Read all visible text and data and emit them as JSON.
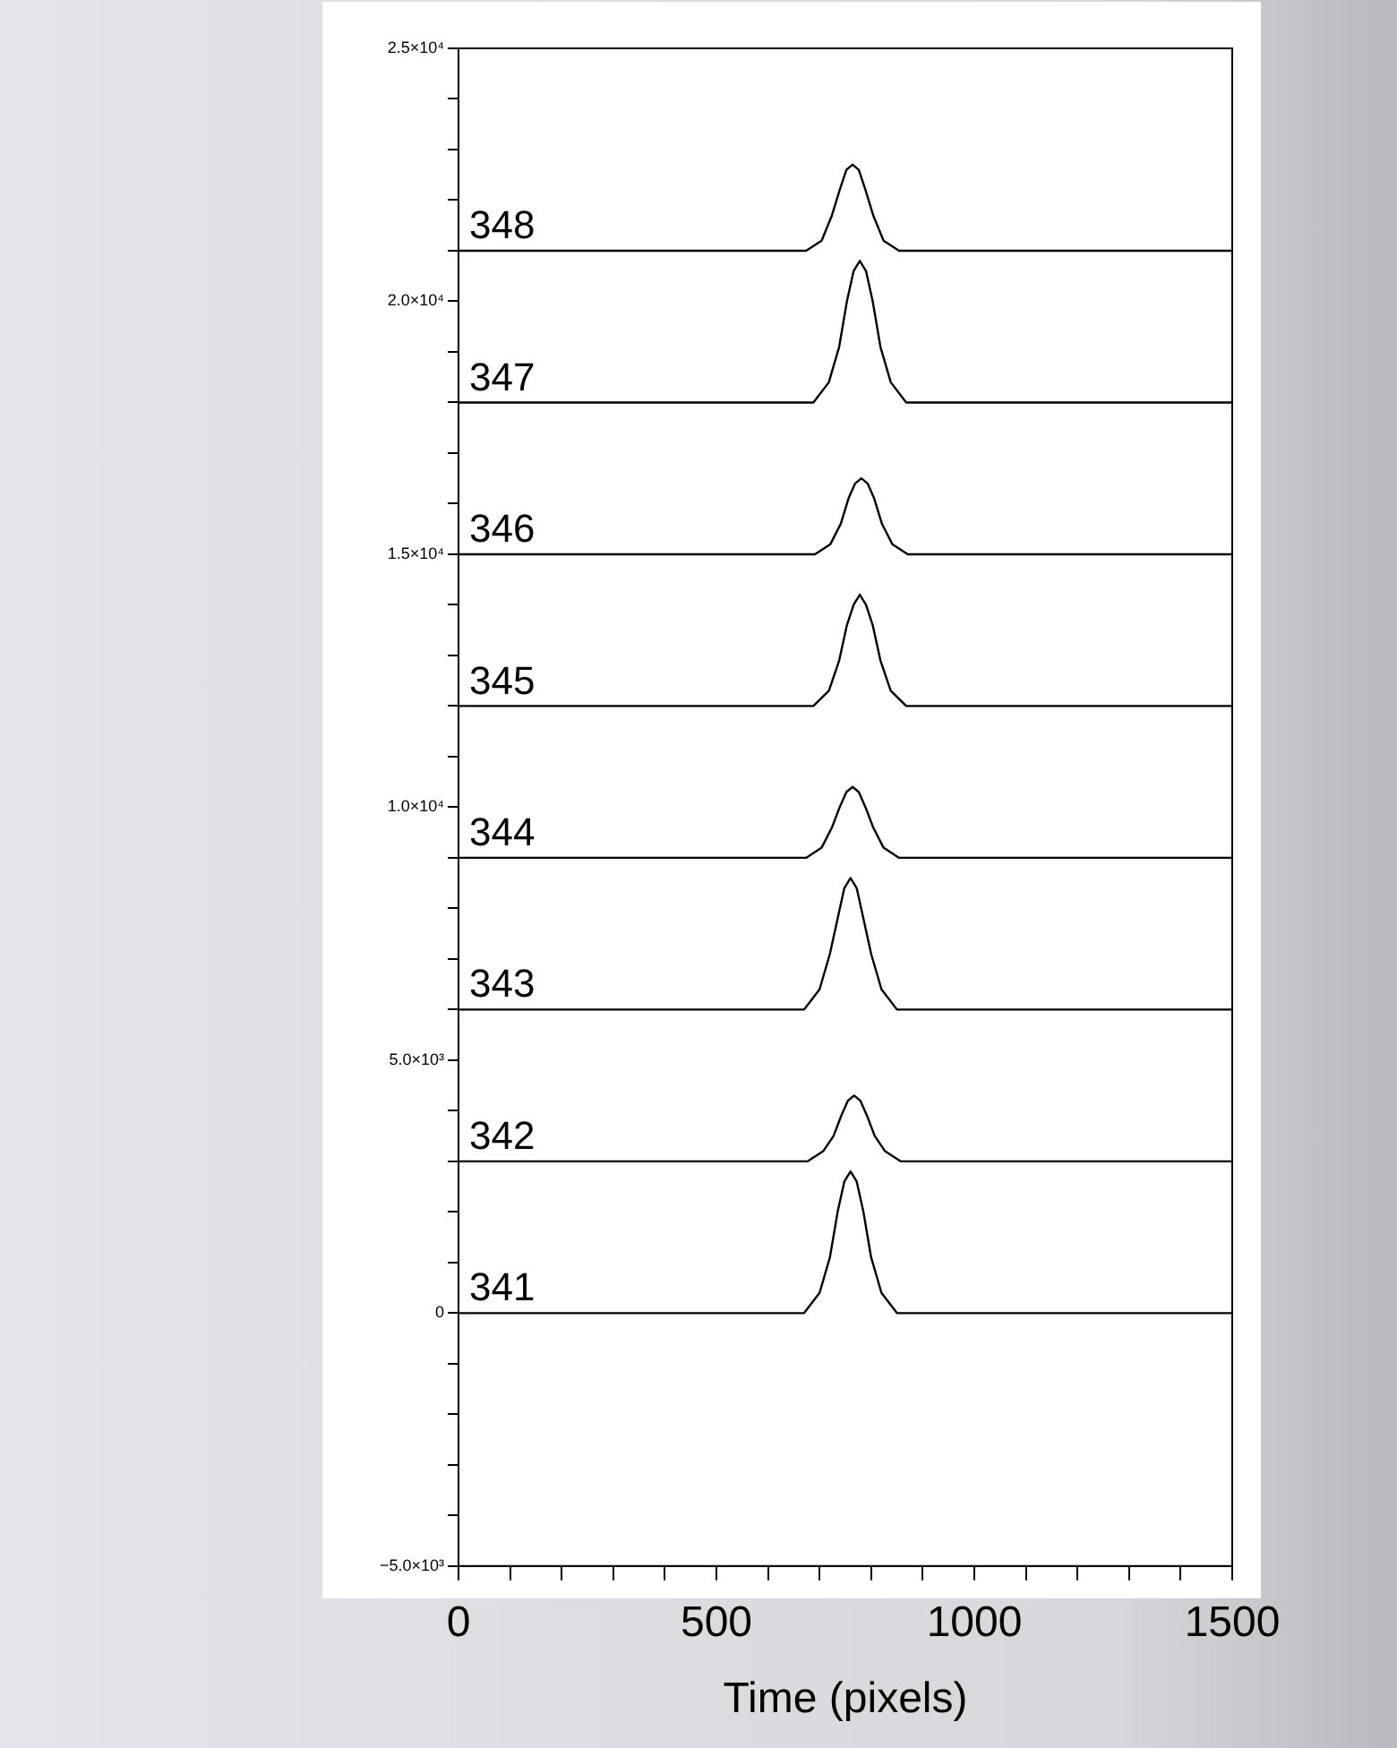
{
  "chart_data": {
    "type": "line",
    "xlabel": "Time (pixels)",
    "legend": false,
    "grid": false,
    "marker": "none",
    "line_style": "solid",
    "xlim": [
      0,
      1500
    ],
    "xticks": [
      0,
      {
        "value": 100,
        "label": null
      },
      {
        "value": 200,
        "label": null
      },
      {
        "value": 300,
        "label": null
      },
      {
        "value": 400,
        "label": null
      },
      500,
      {
        "value": 600,
        "label": null
      },
      {
        "value": 700,
        "label": null
      },
      {
        "value": 800,
        "label": null
      },
      {
        "value": 900,
        "label": null
      },
      1000,
      {
        "value": 1100,
        "label": null
      },
      {
        "value": 1200,
        "label": null
      },
      {
        "value": 1300,
        "label": null
      },
      {
        "value": 1400,
        "label": null
      },
      1500
    ],
    "ylim": [
      -5000,
      25000
    ],
    "yticks": [
      {
        "value": -5000,
        "label": "−5.0×10³"
      },
      {
        "value": -4000,
        "label": null
      },
      {
        "value": -3000,
        "label": null
      },
      {
        "value": -2000,
        "label": null
      },
      {
        "value": -1000,
        "label": null
      },
      0,
      {
        "value": 1000,
        "label": null
      },
      {
        "value": 2000,
        "label": null
      },
      {
        "value": 3000,
        "label": null
      },
      {
        "value": 4000,
        "label": null
      },
      {
        "value": 5000,
        "label": "5.0×10³"
      },
      {
        "value": 6000,
        "label": null
      },
      {
        "value": 7000,
        "label": null
      },
      {
        "value": 8000,
        "label": null
      },
      {
        "value": 9000,
        "label": null
      },
      {
        "value": 10000,
        "label": "1.0×10⁴"
      },
      {
        "value": 11000,
        "label": null
      },
      {
        "value": 12000,
        "label": null
      },
      {
        "value": 13000,
        "label": null
      },
      {
        "value": 14000,
        "label": null
      },
      {
        "value": 15000,
        "label": "1.5×10⁴"
      },
      {
        "value": 16000,
        "label": null
      },
      {
        "value": 17000,
        "label": null
      },
      {
        "value": 18000,
        "label": null
      },
      {
        "value": 19000,
        "label": null
      },
      {
        "value": 20000,
        "label": "2.0×10⁴"
      },
      {
        "value": 21000,
        "label": null
      },
      {
        "value": 22000,
        "label": null
      },
      {
        "value": 23000,
        "label": null
      },
      {
        "value": 24000,
        "label": null
      },
      {
        "value": 25000,
        "label": "2.5×10⁴"
      }
    ],
    "series": [
      {
        "name": "348",
        "color": "#000000",
        "x": [
          0,
          674,
          704,
          724,
          739,
          752,
          764,
          776,
          789,
          804,
          824,
          854,
          1500
        ],
        "values": [
          21000,
          21000,
          21200,
          21700,
          22200,
          22600,
          22700,
          22600,
          22200,
          21700,
          21200,
          21000,
          21000
        ]
      },
      {
        "name": "347",
        "color": "#000000",
        "x": [
          0,
          688,
          718,
          738,
          753,
          766,
          778,
          790,
          803,
          818,
          838,
          868,
          1500
        ],
        "values": [
          18000,
          18000,
          18400,
          19100,
          20000,
          20600,
          20800,
          20600,
          20000,
          19100,
          18400,
          18000,
          18000
        ]
      },
      {
        "name": "346",
        "color": "#000000",
        "x": [
          0,
          691,
          721,
          741,
          756,
          769,
          781,
          793,
          806,
          821,
          841,
          871,
          1500
        ],
        "values": [
          15000,
          15000,
          15200,
          15600,
          16100,
          16400,
          16500,
          16400,
          16100,
          15600,
          15200,
          15000,
          15000
        ]
      },
      {
        "name": "345",
        "color": "#000000",
        "x": [
          0,
          688,
          718,
          738,
          753,
          766,
          778,
          790,
          803,
          818,
          838,
          868,
          1500
        ],
        "values": [
          12000,
          12000,
          12300,
          12900,
          13600,
          14000,
          14200,
          14000,
          13600,
          12900,
          12300,
          12000,
          12000
        ]
      },
      {
        "name": "344",
        "color": "#000000",
        "x": [
          0,
          674,
          704,
          724,
          739,
          752,
          764,
          776,
          789,
          804,
          824,
          854,
          1500
        ],
        "values": [
          9000,
          9000,
          9200,
          9600,
          10000,
          10300,
          10400,
          10300,
          10000,
          9600,
          9200,
          9000,
          9000
        ]
      },
      {
        "name": "343",
        "color": "#000000",
        "x": [
          0,
          670,
          700,
          720,
          735,
          748,
          760,
          772,
          785,
          800,
          820,
          850,
          1500
        ],
        "values": [
          6000,
          6000,
          6400,
          7100,
          7800,
          8400,
          8600,
          8400,
          7800,
          7100,
          6400,
          6000,
          6000
        ]
      },
      {
        "name": "342",
        "color": "#000000",
        "x": [
          0,
          677,
          707,
          727,
          742,
          755,
          767,
          779,
          792,
          807,
          827,
          857,
          1500
        ],
        "values": [
          3000,
          3000,
          3200,
          3500,
          3900,
          4200,
          4300,
          4200,
          3900,
          3500,
          3200,
          3000,
          3000
        ]
      },
      {
        "name": "341",
        "color": "#000000",
        "x": [
          0,
          670,
          700,
          720,
          735,
          748,
          760,
          772,
          785,
          800,
          820,
          850,
          1500
        ],
        "values": [
          0,
          0,
          400,
          1100,
          2000,
          2600,
          2800,
          2600,
          2000,
          1100,
          400,
          0,
          0
        ]
      }
    ]
  }
}
